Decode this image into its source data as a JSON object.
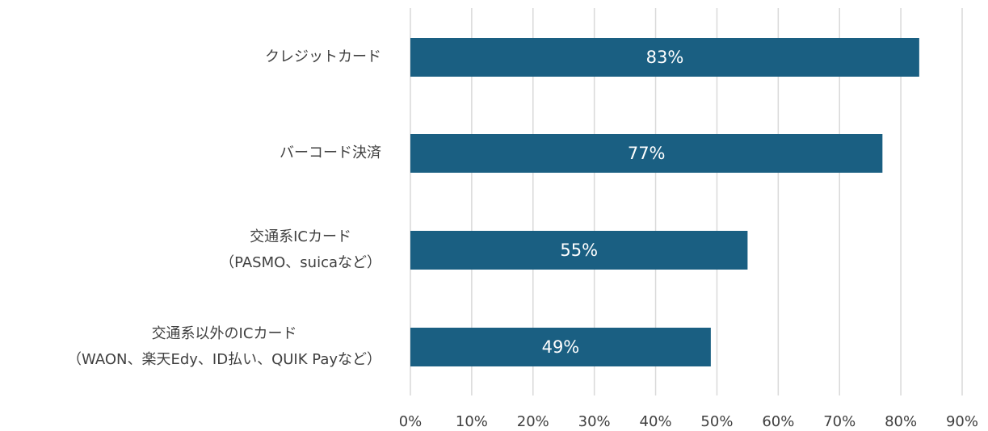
{
  "chart_data": {
    "type": "barh",
    "categories": [
      [
        "クレジットカード"
      ],
      [
        "バーコード決済"
      ],
      [
        "交通系ICカード",
        "（PASMO、suicaなど）"
      ],
      [
        "交通系以外のICカード",
        "（WAON、楽天Edy、ID払い、QUIK Payなど）"
      ]
    ],
    "values": [
      83,
      77,
      55,
      49
    ],
    "value_labels": [
      "83%",
      "77%",
      "55%",
      "49%"
    ],
    "color": "#1a5f82",
    "xlim": [
      0,
      90
    ],
    "xticks": [
      {
        "value": 0,
        "label": "0%"
      },
      {
        "value": 10,
        "label": "10%"
      },
      {
        "value": 20,
        "label": "20%"
      },
      {
        "value": 30,
        "label": "30%"
      },
      {
        "value": 40,
        "label": "40%"
      },
      {
        "value": 50,
        "label": "50%"
      },
      {
        "value": 60,
        "label": "60%"
      },
      {
        "value": 70,
        "label": "70%"
      },
      {
        "value": 80,
        "label": "80%"
      },
      {
        "value": 90,
        "label": "90%"
      }
    ],
    "grid": true
  }
}
